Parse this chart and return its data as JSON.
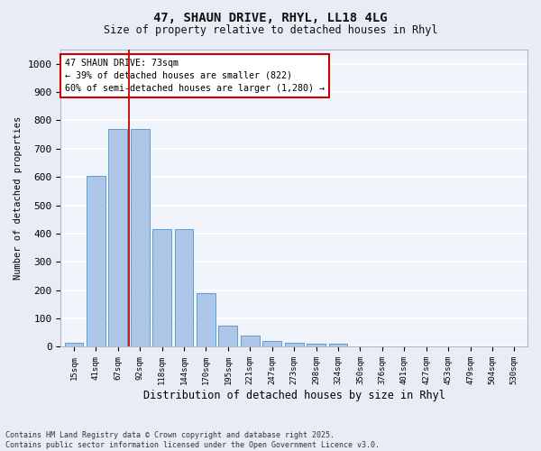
{
  "title1": "47, SHAUN DRIVE, RHYL, LL18 4LG",
  "title2": "Size of property relative to detached houses in Rhyl",
  "xlabel": "Distribution of detached houses by size in Rhyl",
  "ylabel": "Number of detached properties",
  "categories": [
    "15sqm",
    "41sqm",
    "67sqm",
    "92sqm",
    "118sqm",
    "144sqm",
    "170sqm",
    "195sqm",
    "221sqm",
    "247sqm",
    "273sqm",
    "298sqm",
    "324sqm",
    "350sqm",
    "376sqm",
    "401sqm",
    "427sqm",
    "453sqm",
    "479sqm",
    "504sqm",
    "530sqm"
  ],
  "values": [
    15,
    605,
    770,
    770,
    415,
    415,
    190,
    75,
    40,
    20,
    15,
    10,
    12,
    0,
    0,
    0,
    0,
    0,
    0,
    0,
    0
  ],
  "bar_color": "#aec6e8",
  "bar_edge_color": "#5a9fd4",
  "vline_x_index": 2,
  "vline_color": "#cc0000",
  "annotation_text": "47 SHAUN DRIVE: 73sqm\n← 39% of detached houses are smaller (822)\n60% of semi-detached houses are larger (1,280) →",
  "annotation_box_color": "#ffffff",
  "annotation_box_edge": "#cc0000",
  "ylim": [
    0,
    1050
  ],
  "yticks": [
    0,
    100,
    200,
    300,
    400,
    500,
    600,
    700,
    800,
    900,
    1000
  ],
  "bg_color": "#e8edf5",
  "plot_bg_color": "#f0f4fa",
  "grid_color": "#ffffff",
  "footer1": "Contains HM Land Registry data © Crown copyright and database right 2025.",
  "footer2": "Contains public sector information licensed under the Open Government Licence v3.0."
}
